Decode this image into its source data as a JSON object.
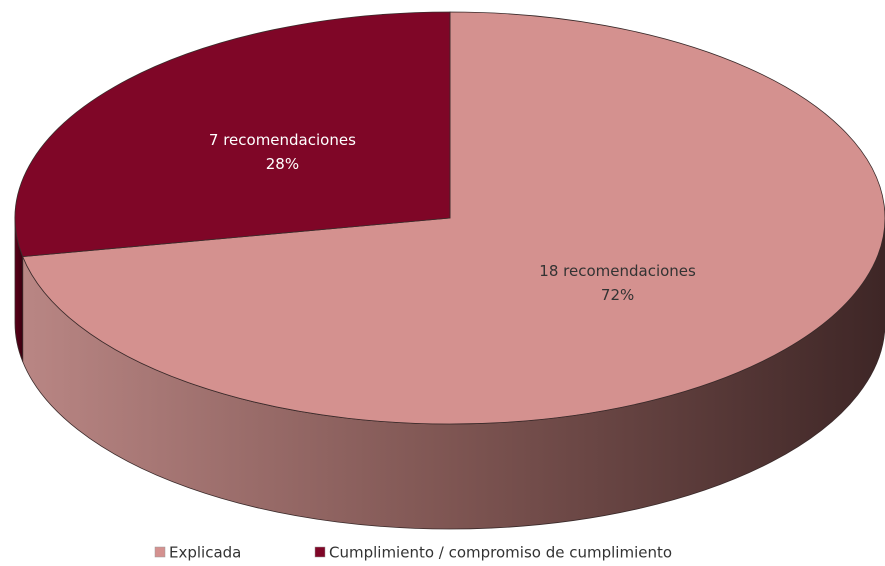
{
  "chart_data": {
    "type": "pie",
    "categories": [
      "Explicada",
      "Cumplimiento / compromiso de cumplimiento"
    ],
    "values": [
      18,
      7
    ],
    "value_labels": [
      "18 recomendaciones",
      "7 recomendaciones"
    ],
    "percent_labels": [
      "72%",
      "28%"
    ],
    "colors": [
      "#d4918f",
      "#7f0627"
    ],
    "legend": "bottom"
  }
}
